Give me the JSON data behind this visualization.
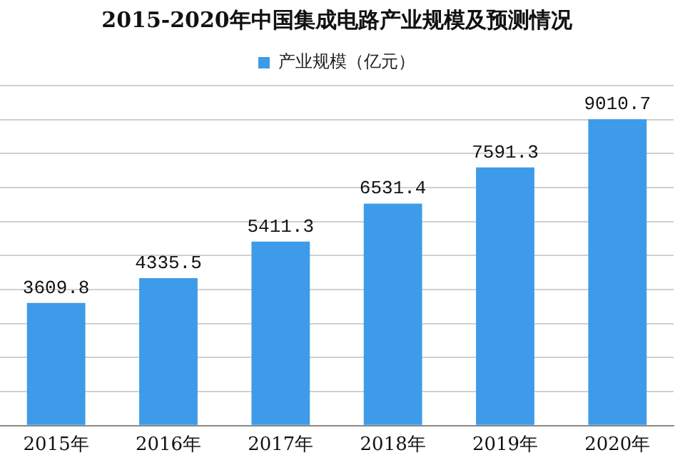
{
  "chart_data": {
    "type": "bar",
    "title": "2015-2020年中国集成电路产业规模及预测情况",
    "categories": [
      "2015年",
      "2016年",
      "2017年",
      "2018年",
      "2019年",
      "2020年"
    ],
    "series": [
      {
        "name": "产业规模（亿元）",
        "color": "#3d9be9",
        "values": [
          3609.8,
          4335.5,
          5411.3,
          6531.4,
          7591.3,
          9010.7
        ]
      }
    ],
    "ylim": [
      0,
      10000
    ],
    "yticks": [
      {
        "value": 0,
        "label": null
      },
      {
        "value": 1000,
        "label": null
      },
      {
        "value": 2000,
        "label": null
      },
      {
        "value": 3000,
        "label": null
      },
      {
        "value": 4000,
        "label": null
      },
      {
        "value": 5000,
        "label": null
      },
      {
        "value": 6000,
        "label": null
      },
      {
        "value": 7000,
        "label": null
      },
      {
        "value": 8000,
        "label": null
      },
      {
        "value": 9000,
        "label": null
      },
      {
        "value": 10000,
        "label": null
      }
    ],
    "grid": "y",
    "legend": "top",
    "tick_labels": "x",
    "data_labels": true
  }
}
